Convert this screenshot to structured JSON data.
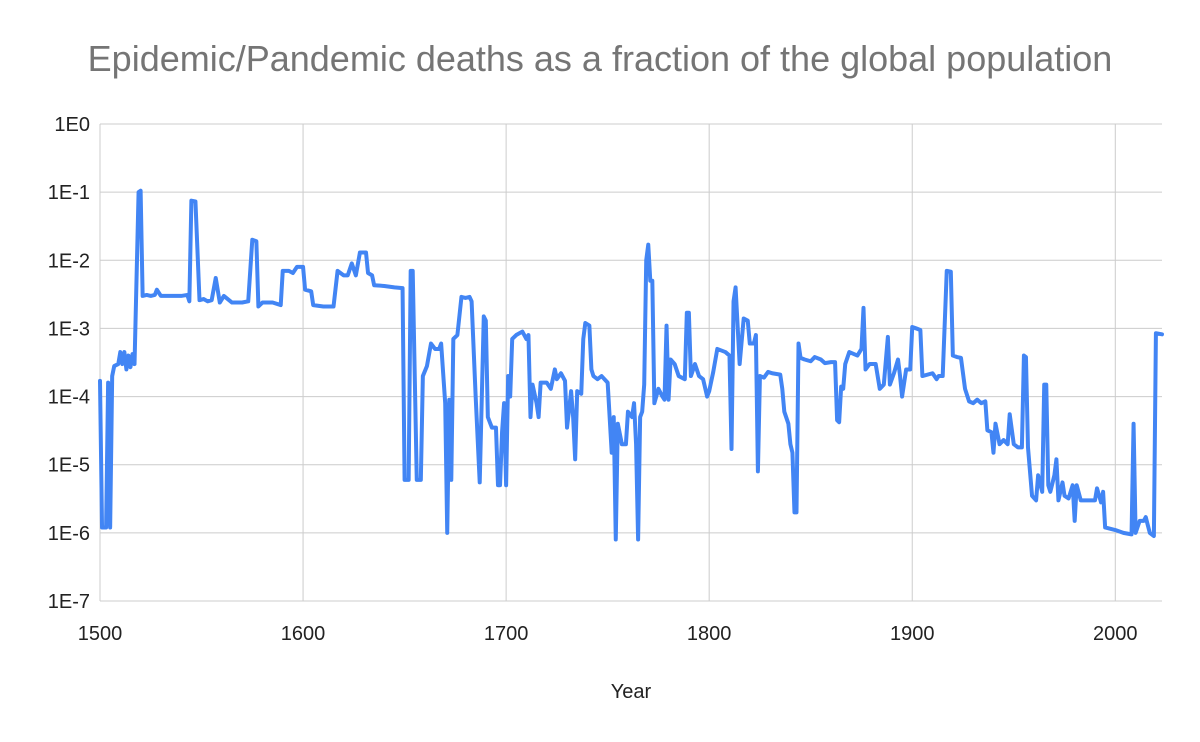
{
  "chart_data": {
    "type": "line",
    "title": "Epidemic/Pandemic deaths as a fraction of the global population",
    "xlabel": "Year",
    "ylabel": "",
    "xlim": [
      1500,
      2023
    ],
    "ylim": [
      1e-07,
      1
    ],
    "y_scale": "log",
    "grid": true,
    "x_ticks": [
      "1500",
      "1600",
      "1700",
      "1800",
      "1900",
      "2000"
    ],
    "y_ticks": [
      "1E0",
      "1E-1",
      "1E-2",
      "1E-3",
      "1E-4",
      "1E-5",
      "1E-6",
      "1E-7"
    ],
    "series": [
      {
        "color": "#4285f4",
        "points": [
          [
            1500,
            0.00017
          ],
          [
            1501,
            1.2e-06
          ],
          [
            1503,
            1.2e-06
          ],
          [
            1504,
            0.00016
          ],
          [
            1505,
            1.2e-06
          ],
          [
            1506,
            0.0002
          ],
          [
            1507,
            0.00028
          ],
          [
            1509,
            0.0003
          ],
          [
            1510,
            0.00045
          ],
          [
            1511,
            0.0003
          ],
          [
            1512,
            0.00045
          ],
          [
            1513,
            0.00025
          ],
          [
            1514,
            0.0004
          ],
          [
            1515,
            0.00027
          ],
          [
            1516,
            0.00042
          ],
          [
            1517,
            0.0003
          ],
          [
            1519,
            0.1
          ],
          [
            1520,
            0.105
          ],
          [
            1521,
            0.003
          ],
          [
            1523,
            0.0031
          ],
          [
            1525,
            0.003
          ],
          [
            1527,
            0.0031
          ],
          [
            1528,
            0.0037
          ],
          [
            1530,
            0.003
          ],
          [
            1540,
            0.003
          ],
          [
            1543,
            0.0031
          ],
          [
            1544,
            0.0025
          ],
          [
            1545,
            0.075
          ],
          [
            1547,
            0.073
          ],
          [
            1549,
            0.0026
          ],
          [
            1551,
            0.0027
          ],
          [
            1553,
            0.0025
          ],
          [
            1555,
            0.0026
          ],
          [
            1557,
            0.0055
          ],
          [
            1559,
            0.0024
          ],
          [
            1561,
            0.003
          ],
          [
            1565,
            0.0024
          ],
          [
            1570,
            0.0024
          ],
          [
            1573,
            0.0025
          ],
          [
            1575,
            0.02
          ],
          [
            1577,
            0.019
          ],
          [
            1578,
            0.0021
          ],
          [
            1580,
            0.0024
          ],
          [
            1585,
            0.0024
          ],
          [
            1589,
            0.0022
          ],
          [
            1590,
            0.007
          ],
          [
            1593,
            0.007
          ],
          [
            1595,
            0.0065
          ],
          [
            1597,
            0.008
          ],
          [
            1600,
            0.008
          ],
          [
            1601,
            0.0037
          ],
          [
            1604,
            0.0035
          ],
          [
            1605,
            0.0022
          ],
          [
            1610,
            0.0021
          ],
          [
            1615,
            0.0021
          ],
          [
            1617,
            0.007
          ],
          [
            1620,
            0.006
          ],
          [
            1622,
            0.006
          ],
          [
            1624,
            0.009
          ],
          [
            1626,
            0.006
          ],
          [
            1628,
            0.013
          ],
          [
            1631,
            0.013
          ],
          [
            1632,
            0.0065
          ],
          [
            1634,
            0.006
          ],
          [
            1635,
            0.0043
          ],
          [
            1640,
            0.0042
          ],
          [
            1645,
            0.004
          ],
          [
            1649,
            0.0039
          ],
          [
            1650,
            6e-06
          ],
          [
            1652,
            6e-06
          ],
          [
            1653,
            0.007
          ],
          [
            1654,
            0.007
          ],
          [
            1656,
            6e-06
          ],
          [
            1658,
            6e-06
          ],
          [
            1659,
            0.0002
          ],
          [
            1661,
            0.00028
          ],
          [
            1663,
            0.0006
          ],
          [
            1665,
            0.0005
          ],
          [
            1667,
            0.0005
          ],
          [
            1668,
            0.0006
          ],
          [
            1670,
            8e-05
          ],
          [
            1671,
            1e-06
          ],
          [
            1672,
            9e-05
          ],
          [
            1673,
            6e-06
          ],
          [
            1674,
            0.0007
          ],
          [
            1676,
            0.0008
          ],
          [
            1678,
            0.0029
          ],
          [
            1680,
            0.0028
          ],
          [
            1682,
            0.0029
          ],
          [
            1683,
            0.0025
          ],
          [
            1685,
            0.0001
          ],
          [
            1687,
            5.5e-06
          ],
          [
            1689,
            0.0015
          ],
          [
            1690,
            0.0013
          ],
          [
            1691,
            5e-05
          ],
          [
            1693,
            3.5e-05
          ],
          [
            1695,
            3.5e-05
          ],
          [
            1696,
            5e-06
          ],
          [
            1697,
            5e-06
          ],
          [
            1698,
            3e-05
          ],
          [
            1699,
            8e-05
          ],
          [
            1700,
            5e-06
          ],
          [
            1701,
            0.0002
          ],
          [
            1702,
            0.0001
          ],
          [
            1703,
            0.0007
          ],
          [
            1705,
            0.0008
          ],
          [
            1708,
            0.0009
          ],
          [
            1710,
            0.0007
          ],
          [
            1711,
            0.0008
          ],
          [
            1712,
            5e-05
          ],
          [
            1713,
            0.00015
          ],
          [
            1715,
            8e-05
          ],
          [
            1716,
            5e-05
          ],
          [
            1717,
            0.00016
          ],
          [
            1720,
            0.00016
          ],
          [
            1722,
            0.00013
          ],
          [
            1724,
            0.00025
          ],
          [
            1725,
            0.00018
          ],
          [
            1727,
            0.00022
          ],
          [
            1729,
            0.00017
          ],
          [
            1730,
            3.5e-05
          ],
          [
            1732,
            0.00012
          ],
          [
            1733,
            5e-05
          ],
          [
            1734,
            1.2e-05
          ],
          [
            1735,
            0.00012
          ],
          [
            1737,
            0.00011
          ],
          [
            1738,
            0.0007
          ],
          [
            1739,
            0.0012
          ],
          [
            1741,
            0.0011
          ],
          [
            1742,
            0.00025
          ],
          [
            1743,
            0.0002
          ],
          [
            1745,
            0.00018
          ],
          [
            1747,
            0.0002
          ],
          [
            1750,
            0.00016
          ],
          [
            1752,
            1.5e-05
          ],
          [
            1753,
            5e-05
          ],
          [
            1754,
            8e-07
          ],
          [
            1755,
            4e-05
          ],
          [
            1757,
            2e-05
          ],
          [
            1759,
            2e-05
          ],
          [
            1760,
            6e-05
          ],
          [
            1762,
            5e-05
          ],
          [
            1763,
            8e-05
          ],
          [
            1764,
            2e-05
          ],
          [
            1765,
            8e-07
          ],
          [
            1766,
            5e-05
          ],
          [
            1767,
            6e-05
          ],
          [
            1768,
            0.00015
          ],
          [
            1769,
            0.01
          ],
          [
            1770,
            0.017
          ],
          [
            1771,
            0.005
          ],
          [
            1772,
            0.005
          ],
          [
            1773,
            8e-05
          ],
          [
            1775,
            0.00013
          ],
          [
            1777,
            0.0001
          ],
          [
            1778,
            9e-05
          ],
          [
            1779,
            0.0011
          ],
          [
            1780,
            9e-05
          ],
          [
            1781,
            0.00035
          ],
          [
            1783,
            0.0003
          ],
          [
            1785,
            0.0002
          ],
          [
            1788,
            0.00018
          ],
          [
            1789,
            0.0017
          ],
          [
            1790,
            0.0017
          ],
          [
            1791,
            0.0002
          ],
          [
            1793,
            0.0003
          ],
          [
            1795,
            0.0002
          ],
          [
            1797,
            0.00018
          ],
          [
            1799,
            0.0001
          ],
          [
            1800,
            0.00012
          ],
          [
            1802,
            0.00023
          ],
          [
            1804,
            0.0005
          ],
          [
            1808,
            0.00045
          ],
          [
            1810,
            0.0004
          ],
          [
            1811,
            1.7e-05
          ],
          [
            1812,
            0.0025
          ],
          [
            1813,
            0.004
          ],
          [
            1815,
            0.0003
          ],
          [
            1817,
            0.0014
          ],
          [
            1819,
            0.0013
          ],
          [
            1820,
            0.0006
          ],
          [
            1822,
            0.0006
          ],
          [
            1823,
            0.0008
          ],
          [
            1824,
            8e-06
          ],
          [
            1825,
            0.0002
          ],
          [
            1827,
            0.00019
          ],
          [
            1829,
            0.00023
          ],
          [
            1831,
            0.00022
          ],
          [
            1835,
            0.00021
          ],
          [
            1836,
            0.00013
          ],
          [
            1837,
            6e-05
          ],
          [
            1839,
            4e-05
          ],
          [
            1840,
            2e-05
          ],
          [
            1841,
            1.5e-05
          ],
          [
            1842,
            2e-06
          ],
          [
            1843,
            2e-06
          ],
          [
            1844,
            0.0006
          ],
          [
            1845,
            0.00037
          ],
          [
            1847,
            0.00035
          ],
          [
            1850,
            0.00033
          ],
          [
            1852,
            0.00038
          ],
          [
            1855,
            0.00035
          ],
          [
            1857,
            0.00031
          ],
          [
            1860,
            0.00032
          ],
          [
            1862,
            0.00032
          ],
          [
            1863,
            4.5e-05
          ],
          [
            1864,
            4.2e-05
          ],
          [
            1865,
            0.00014
          ],
          [
            1866,
            0.00013
          ],
          [
            1867,
            0.0003
          ],
          [
            1869,
            0.00045
          ],
          [
            1873,
            0.0004
          ],
          [
            1875,
            0.0005
          ],
          [
            1876,
            0.002
          ],
          [
            1877,
            0.00025
          ],
          [
            1879,
            0.0003
          ],
          [
            1882,
            0.0003
          ],
          [
            1884,
            0.00013
          ],
          [
            1886,
            0.00015
          ],
          [
            1888,
            0.00075
          ],
          [
            1889,
            0.00015
          ],
          [
            1891,
            0.00022
          ],
          [
            1893,
            0.00035
          ],
          [
            1894,
            0.0002
          ],
          [
            1895,
            0.0001
          ],
          [
            1897,
            0.00025
          ],
          [
            1899,
            0.00025
          ],
          [
            1900,
            0.00105
          ],
          [
            1902,
            0.001
          ],
          [
            1904,
            0.00095
          ],
          [
            1905,
            0.0002
          ],
          [
            1910,
            0.00022
          ],
          [
            1912,
            0.00018
          ],
          [
            1913,
            0.0002
          ],
          [
            1915,
            0.0002
          ],
          [
            1917,
            0.007
          ],
          [
            1919,
            0.0068
          ],
          [
            1920,
            0.0004
          ],
          [
            1922,
            0.00038
          ],
          [
            1924,
            0.00037
          ],
          [
            1926,
            0.00013
          ],
          [
            1928,
            8.5e-05
          ],
          [
            1930,
            8e-05
          ],
          [
            1932,
            9e-05
          ],
          [
            1934,
            8e-05
          ],
          [
            1936,
            8.5e-05
          ],
          [
            1937,
            3.2e-05
          ],
          [
            1939,
            3e-05
          ],
          [
            1940,
            1.5e-05
          ],
          [
            1941,
            4e-05
          ],
          [
            1943,
            2e-05
          ],
          [
            1945,
            2.3e-05
          ],
          [
            1947,
            2e-05
          ],
          [
            1948,
            5.5e-05
          ],
          [
            1950,
            2e-05
          ],
          [
            1952,
            1.8e-05
          ],
          [
            1954,
            1.8e-05
          ],
          [
            1955,
            0.0004
          ],
          [
            1956,
            0.00038
          ],
          [
            1957,
            1.8e-05
          ],
          [
            1959,
            3.5e-06
          ],
          [
            1961,
            3e-06
          ],
          [
            1962,
            7e-06
          ],
          [
            1964,
            4e-06
          ],
          [
            1965,
            0.00015
          ],
          [
            1966,
            0.00015
          ],
          [
            1967,
            5e-06
          ],
          [
            1968,
            4e-06
          ],
          [
            1970,
            7e-06
          ],
          [
            1971,
            1.2e-05
          ],
          [
            1972,
            3e-06
          ],
          [
            1974,
            5.5e-06
          ],
          [
            1975,
            3.5e-06
          ],
          [
            1977,
            3.2e-06
          ],
          [
            1979,
            5e-06
          ],
          [
            1980,
            1.5e-06
          ],
          [
            1981,
            5e-06
          ],
          [
            1983,
            3e-06
          ],
          [
            1985,
            3e-06
          ],
          [
            1990,
            3e-06
          ],
          [
            1991,
            4.5e-06
          ],
          [
            1993,
            2.8e-06
          ],
          [
            1994,
            4e-06
          ],
          [
            1995,
            1.2e-06
          ],
          [
            2000,
            1.1e-06
          ],
          [
            2004,
            1e-06
          ],
          [
            2008,
            9.5e-07
          ],
          [
            2009,
            4e-05
          ],
          [
            2010,
            1e-06
          ],
          [
            2012,
            1.5e-06
          ],
          [
            2014,
            1.5e-06
          ],
          [
            2015,
            1.7e-06
          ],
          [
            2016,
            1.3e-06
          ],
          [
            2017,
            1e-06
          ],
          [
            2019,
            9e-07
          ],
          [
            2020,
            0.00085
          ],
          [
            2023,
            0.00082
          ]
        ]
      }
    ]
  }
}
